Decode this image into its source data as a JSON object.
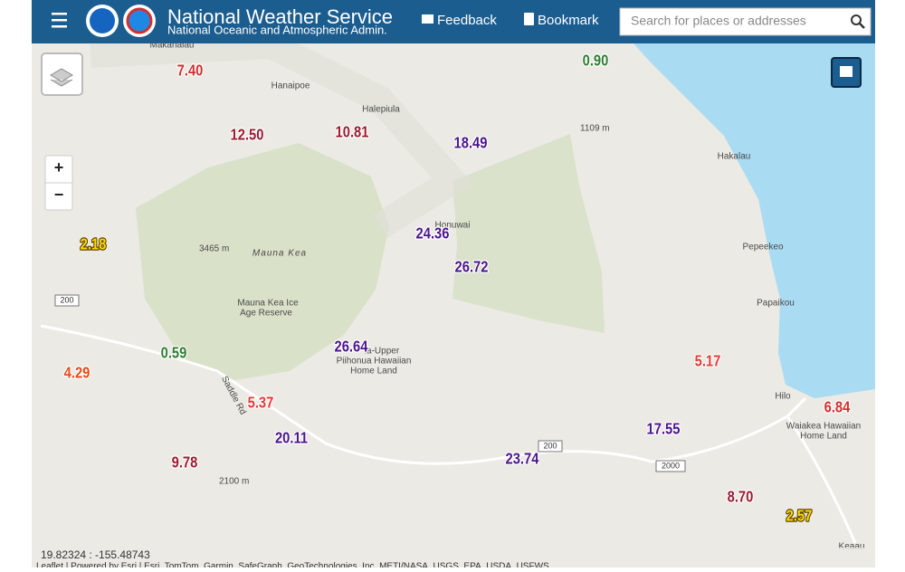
{
  "header": {
    "title": "National Weather Service",
    "subtitle": "National Oceanic and Atmospheric Admin.",
    "feedback": "Feedback",
    "bookmark": "Bookmark",
    "search_placeholder": "Search for places or addresses"
  },
  "map": {
    "places": [
      "Makahalau",
      "Hanaipoe",
      "Halepiula",
      "Hakalau",
      "Honuwai",
      "Pepeekeo",
      "Papaikou",
      "Mauna Kea Ice",
      "Age Reserve",
      "la-Upper",
      "Piihonua Hawaiian",
      "Home Land",
      "Hilo",
      "Waiakea Hawaiian",
      "Home Land",
      "Keaau",
      "Mauna Kea",
      "Saddle Rd"
    ],
    "elevations": [
      "1109 m",
      "3465 m",
      "2100 m"
    ],
    "shields": [
      "200",
      "200",
      "2000"
    ],
    "values": [
      {
        "label": "7.40",
        "color": "#d32f2f"
      },
      {
        "label": "0.90",
        "color": "#2e7d32"
      },
      {
        "label": "12.50",
        "color": "#9b1b30"
      },
      {
        "label": "10.81",
        "color": "#9b1b30"
      },
      {
        "label": "18.49",
        "color": "#4a148c"
      },
      {
        "label": "24.36",
        "color": "#4a148c"
      },
      {
        "label": "26.72",
        "color": "#4a148c"
      },
      {
        "label": "2.18",
        "color": "#ffd600"
      },
      {
        "label": "0.59",
        "color": "#2e7d32"
      },
      {
        "label": "4.29",
        "color": "#e64a19"
      },
      {
        "label": "26.64",
        "color": "#4a148c"
      },
      {
        "label": "5.37",
        "color": "#e53935"
      },
      {
        "label": "5.17",
        "color": "#e53935"
      },
      {
        "label": "20.11",
        "color": "#4a148c"
      },
      {
        "label": "9.78",
        "color": "#9b1b30"
      },
      {
        "label": "23.74",
        "color": "#4a148c"
      },
      {
        "label": "17.55",
        "color": "#4a148c"
      },
      {
        "label": "6.84",
        "color": "#d32f2f"
      },
      {
        "label": "8.70",
        "color": "#9b1b30"
      },
      {
        "label": "2.57",
        "color": "#ffd600"
      }
    ],
    "coordinates": "19.82324 : -155.48743",
    "attribution": "Leaflet | Powered by Esri | Esri, TomTom, Garmin, SafeGraph, GeoTechnologies, Inc, METI/NASA, USGS, EPA, USDA, USFWS"
  }
}
